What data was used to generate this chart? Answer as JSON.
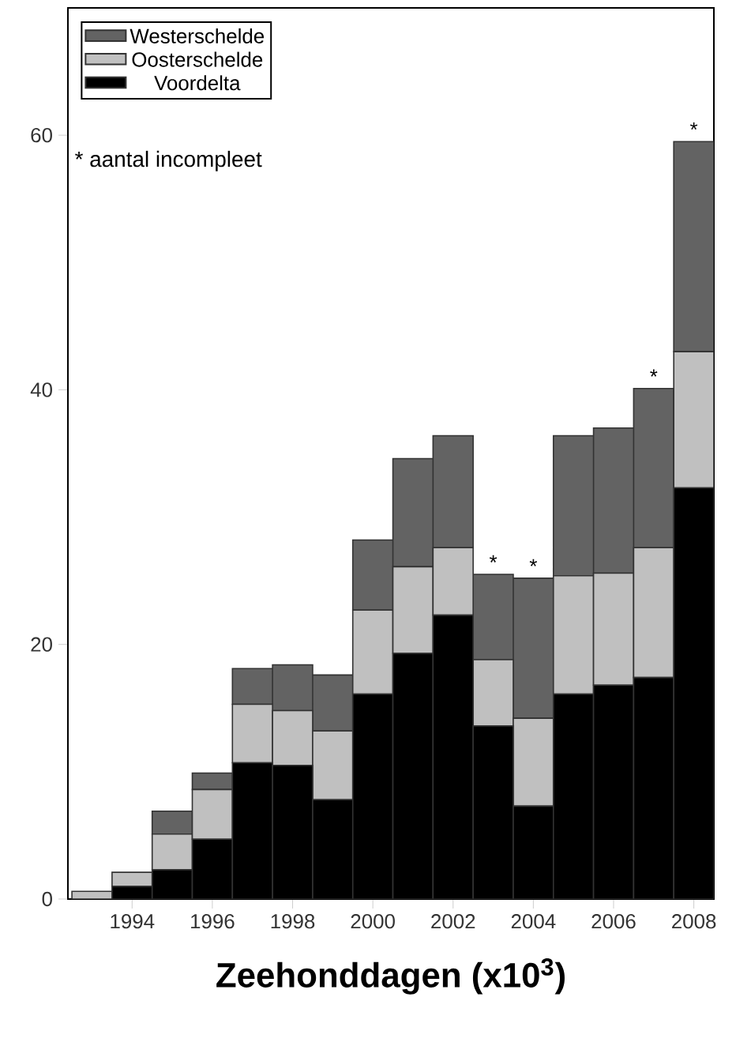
{
  "chart_data": {
    "type": "bar",
    "stacked": true,
    "xlabel": "Zeehonddagen (x10$^{3}$)",
    "x": [
      1993,
      1994,
      1995,
      1996,
      1997,
      1998,
      1999,
      2000,
      2001,
      2002,
      2003,
      2004,
      2005,
      2006,
      2007,
      2008
    ],
    "xlim": [
      1992.4,
      2008.5
    ],
    "xticks": [
      1994,
      1996,
      1998,
      2000,
      2002,
      2004,
      2006,
      2008
    ],
    "ylim": [
      0,
      70
    ],
    "yticks": [
      0,
      20,
      40,
      60
    ],
    "series": [
      {
        "name": "Voordelta",
        "color": "#000000",
        "values": [
          0,
          1.0,
          2.3,
          4.7,
          10.7,
          10.5,
          7.8,
          16.1,
          19.3,
          22.3,
          13.6,
          7.3,
          16.1,
          16.8,
          17.4,
          32.3
        ]
      },
      {
        "name": "Oosterschelde",
        "color": "#c0c0c0",
        "values": [
          0.6,
          1.1,
          2.8,
          3.9,
          4.6,
          4.3,
          5.4,
          6.6,
          6.8,
          5.3,
          5.2,
          6.9,
          9.3,
          8.8,
          10.2,
          10.7
        ]
      },
      {
        "name": "Westerschelde",
        "color": "#636363",
        "values": [
          0,
          0,
          1.8,
          1.3,
          2.8,
          3.6,
          4.4,
          5.5,
          8.5,
          8.8,
          6.7,
          11.0,
          11.0,
          11.4,
          12.5,
          16.5
        ]
      }
    ],
    "legend": "top left",
    "grid": false,
    "annotations": [
      "* aantal incompleet",
      {
        "text": "*",
        "x": 2003,
        "y": 25.5
      },
      {
        "text": "*",
        "x": 2004,
        "y": 25.2
      },
      {
        "text": "*",
        "x": 2007,
        "y": 40.1
      },
      {
        "text": "*",
        "x": 2008,
        "y": 59.5
      }
    ]
  }
}
